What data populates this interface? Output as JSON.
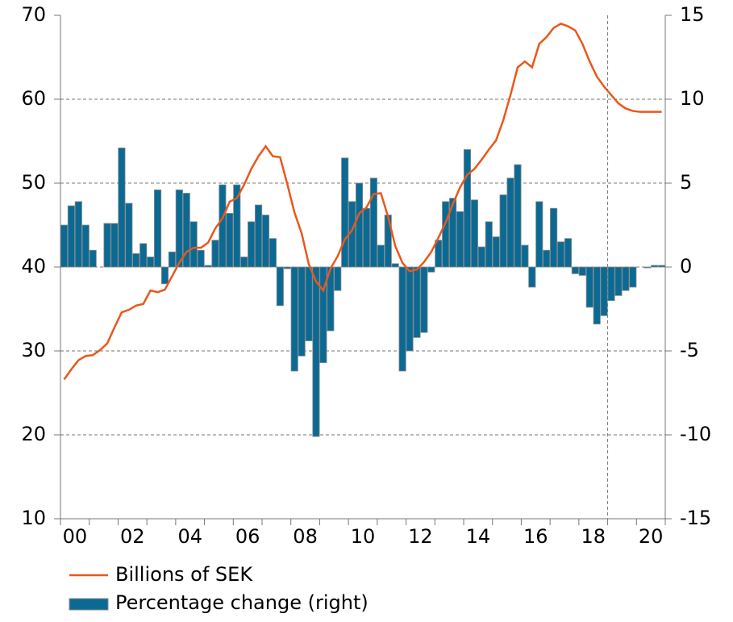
{
  "chart_data": {
    "type": "bar-line",
    "categories": [
      "00",
      null,
      null,
      null,
      null,
      null,
      null,
      null,
      "02",
      null,
      null,
      null,
      null,
      null,
      null,
      null,
      "04",
      null,
      null,
      null,
      null,
      null,
      null,
      null,
      "06",
      null,
      null,
      null,
      null,
      null,
      null,
      null,
      "08",
      null,
      null,
      null,
      null,
      null,
      null,
      null,
      "10",
      null,
      null,
      null,
      null,
      null,
      null,
      null,
      "12",
      null,
      null,
      null,
      null,
      null,
      null,
      null,
      "14",
      null,
      null,
      null,
      null,
      null,
      null,
      null,
      "16",
      null,
      null,
      null,
      null,
      null,
      null,
      null,
      "18",
      null,
      null,
      null,
      null,
      null,
      null,
      null,
      "20",
      null,
      null,
      null
    ],
    "series": [
      {
        "name": "Billions of SEK",
        "type": "line",
        "color": "#e8581c",
        "values": [
          26.6,
          27.8,
          28.9,
          29.4,
          29.5,
          30.1,
          30.9,
          32.8,
          34.6,
          34.9,
          35.4,
          35.6,
          37.2,
          37.0,
          37.3,
          38.9,
          40.5,
          41.8,
          42.3,
          42.3,
          42.9,
          44.6,
          45.8,
          47.8,
          48.2,
          49.8,
          51.7,
          53.2,
          54.4,
          53.2,
          53.1,
          49.9,
          46.5,
          44.0,
          40.3,
          38.3,
          37.2,
          39.8,
          41.3,
          43.3,
          44.4,
          46.4,
          47.1,
          48.7,
          48.8,
          46.0,
          42.5,
          40.5,
          39.5,
          39.7,
          40.6,
          41.8,
          43.5,
          45.3,
          47.5,
          49.5,
          51.0,
          51.7,
          52.8,
          54.0,
          55.1,
          57.5,
          60.5,
          63.8,
          64.5,
          63.8,
          66.6,
          67.4,
          68.5,
          69.0,
          68.7,
          68.2,
          66.6,
          64.5,
          62.7,
          61.5,
          60.5,
          59.5,
          58.9,
          58.6,
          58.5,
          58.5,
          58.5,
          58.5
        ]
      },
      {
        "name": "Percentage change (right)",
        "type": "bar",
        "axis": "y2",
        "color": "#0b6a94",
        "values": [
          2.5,
          3.65,
          3.9,
          2.5,
          1.0,
          0.0,
          2.6,
          2.6,
          7.1,
          3.8,
          0.8,
          1.4,
          0.6,
          4.6,
          -1.0,
          0.9,
          4.6,
          4.4,
          2.7,
          1.0,
          0.1,
          1.6,
          4.9,
          3.2,
          4.9,
          0.6,
          2.7,
          3.7,
          3.1,
          1.7,
          -2.3,
          -0.1,
          -6.2,
          -5.3,
          -4.4,
          -10.1,
          -5.7,
          -3.8,
          -1.4,
          6.5,
          3.9,
          5.0,
          3.5,
          5.3,
          1.3,
          3.1,
          0.2,
          -6.2,
          -5.0,
          -4.2,
          -3.9,
          -0.3,
          1.6,
          3.9,
          4.1,
          3.3,
          7.0,
          4.0,
          1.2,
          2.7,
          1.8,
          4.3,
          5.3,
          6.1,
          1.3,
          -1.2,
          3.9,
          1.0,
          3.5,
          1.5,
          1.7,
          -0.4,
          -0.5,
          -2.4,
          -3.4,
          -2.9,
          -2.0,
          -1.7,
          -1.4,
          -1.2,
          0.0,
          -0.05,
          0.1,
          0.1
        ]
      }
    ],
    "ylim": [
      10,
      70
    ],
    "yticks": [
      10,
      20,
      30,
      40,
      50,
      60,
      70
    ],
    "y2lim": [
      -15,
      15
    ],
    "y2ticks": [
      -15,
      -10,
      -5,
      0,
      5,
      10,
      15
    ],
    "grid": true,
    "vline_at": 76,
    "legend": "bottom"
  }
}
